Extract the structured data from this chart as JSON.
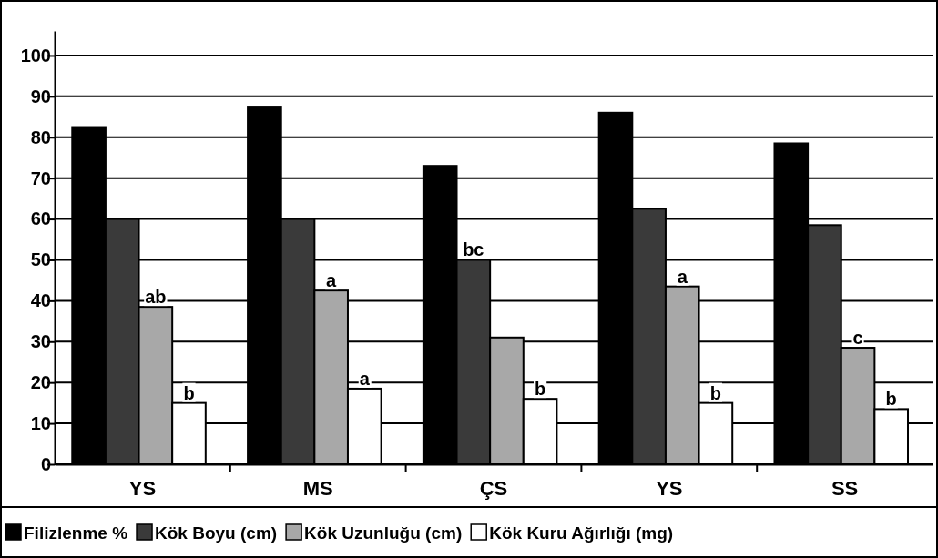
{
  "chart_data": {
    "type": "bar",
    "categories": [
      "YS",
      "MS",
      "ÇS",
      "YS",
      "SS"
    ],
    "series": [
      {
        "name": "Filizlenme %",
        "color": "#000000",
        "values": [
          82.5,
          87.5,
          73,
          86,
          78.5
        ]
      },
      {
        "name": "Kök Boyu (cm)",
        "color": "#3a3a3a",
        "values": [
          60,
          60,
          50,
          62.5,
          58.5
        ],
        "value_labels": [
          null,
          null,
          "bc",
          null,
          null
        ]
      },
      {
        "name": "Kök Uzunluğu (cm)",
        "color": "#a8a8a8",
        "values": [
          38.5,
          42.5,
          31,
          43.5,
          28.5
        ],
        "value_labels": [
          "ab",
          "a",
          null,
          "a",
          "c"
        ]
      },
      {
        "name": "Kök Kuru Ağırlığı (mg)",
        "color": "#ffffff",
        "values": [
          15,
          18.5,
          16,
          15,
          13.5
        ],
        "value_labels": [
          "b",
          "a",
          "b",
          "b",
          "b"
        ]
      }
    ],
    "ylim": [
      0,
      106
    ],
    "yticks": [
      0,
      10,
      20,
      30,
      40,
      50,
      60,
      70,
      80,
      90,
      100
    ],
    "grid": "y",
    "legend": "bottom"
  }
}
